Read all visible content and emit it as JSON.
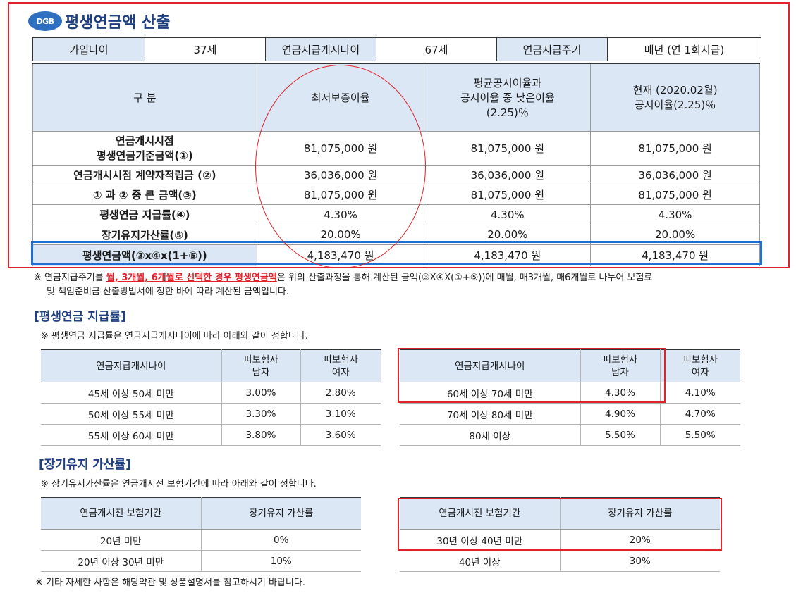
{
  "header": {
    "logo_text": "DGB",
    "title": "평생연금액 산출"
  },
  "summary": {
    "join_age_label": "가입나이",
    "join_age_value": "37세",
    "start_age_label": "연금지급개시나이",
    "start_age_value": "67세",
    "cycle_label": "연금지급주기",
    "cycle_value": "매년 (연 1회지급)"
  },
  "main_table": {
    "headers": {
      "category": "구  분",
      "col1": "최저보증이율",
      "col2_l1": "평균공시이율과",
      "col2_l2": "공시이율 중 낮은이율",
      "col2_l3": "(2.25)％",
      "col3_l1": "현재 (2020.02월)",
      "col3_l2": "공시이율(2.25)％"
    },
    "rows": [
      {
        "label_l1": "연금개시시점",
        "label_l2": "평생연금기준금액(①)",
        "v1": "81,075,000 원",
        "v2": "81,075,000 원",
        "v3": "81,075,000 원"
      },
      {
        "label_l1": "연금개시시점 계약자적립금 (②)",
        "v1": "36,036,000 원",
        "v2": "36,036,000 원",
        "v3": "36,036,000 원"
      },
      {
        "label_l1": "① 과 ② 중 큰 금액(③)",
        "v1": "81,075,000 원",
        "v2": "81,075,000 원",
        "v3": "81,075,000 원"
      },
      {
        "label_l1": "평생연금 지급률(④)",
        "v1": "4.30%",
        "v2": "4.30%",
        "v3": "4.30%"
      },
      {
        "label_l1": "장기유지가산률(⑤)",
        "v1": "20.00%",
        "v2": "20.00%",
        "v3": "20.00%"
      },
      {
        "label_l1": "평생연금액(③x④x(1+⑤))",
        "v1": "4,183,470 원",
        "v2": "4,183,470 원",
        "v3": "4,183,470 원"
      }
    ]
  },
  "note1": {
    "prefix": "※ 연금지급주기를 ",
    "highlight": "월, 3개월, 6개월로 선택한 경우 평생연금액",
    "suffix": "은 위의 산출과정을 통해 계산된 금액(③X④X(①+⑤))에 매월, 매3개월, 매6개월로 나누어 보험료",
    "line2": "및 책임준비금 산출방법서에 정한 바에 따라 계산된 금액입니다."
  },
  "rate_section": {
    "title": "[평생연금 지급률]",
    "note": "※ 평생연금 지급률은 연금지급개시나이에 따라 아래와 같이 정합니다.",
    "headers": {
      "age": "연금지급개시나이",
      "male_l1": "피보험자",
      "male_l2": "남자",
      "female_l1": "피보험자",
      "female_l2": "여자"
    },
    "left_rows": [
      {
        "age": "45세 이상 50세 미만",
        "male": "3.00%",
        "female": "2.80%"
      },
      {
        "age": "50세 이상 55세 미만",
        "male": "3.30%",
        "female": "3.10%"
      },
      {
        "age": "55세 이상 60세 미만",
        "male": "3.80%",
        "female": "3.60%"
      }
    ],
    "right_rows": [
      {
        "age": "60세 이상 70세 미만",
        "male": "4.30%",
        "female": "4.10%"
      },
      {
        "age": "70세 이상 80세 미만",
        "male": "4.90%",
        "female": "4.70%"
      },
      {
        "age": "80세 이상",
        "male": "5.50%",
        "female": "5.50%"
      }
    ]
  },
  "bonus_section": {
    "title": "[장기유지 가산률]",
    "note": "※ 장기유지가산률은 연금개시전 보험기간에 따라 아래와 같이 정합니다.",
    "headers": {
      "period": "연금개시전 보험기간",
      "rate": "장기유지 가산률"
    },
    "left_rows": [
      {
        "period": "20년 미만",
        "rate": "0%"
      },
      {
        "period": "20년 이상 30년 미만",
        "rate": "10%"
      }
    ],
    "right_rows": [
      {
        "period": "30년 이상 40년 미만",
        "rate": "20%"
      },
      {
        "period": "40년 이상",
        "rate": "30%"
      }
    ]
  },
  "footer_note": "※ 기타 자세한 사항은 해당약관 및 상품설명서를 참고하시기 바랍니다."
}
